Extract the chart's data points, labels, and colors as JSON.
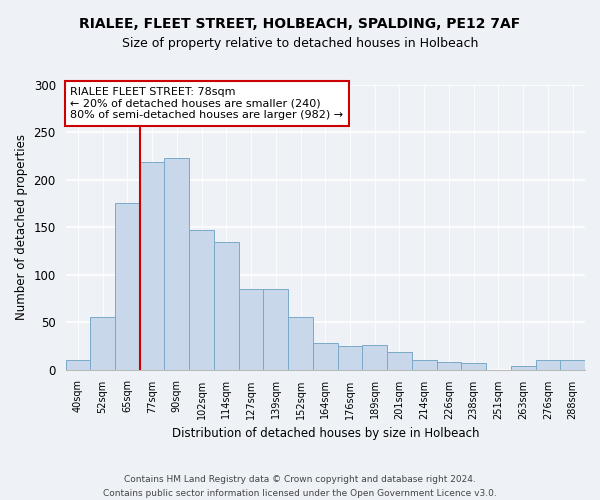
{
  "title_line1": "RIALEE, FLEET STREET, HOLBEACH, SPALDING, PE12 7AF",
  "title_line2": "Size of property relative to detached houses in Holbeach",
  "xlabel": "Distribution of detached houses by size in Holbeach",
  "ylabel": "Number of detached properties",
  "bin_labels": [
    "40sqm",
    "52sqm",
    "65sqm",
    "77sqm",
    "90sqm",
    "102sqm",
    "114sqm",
    "127sqm",
    "139sqm",
    "152sqm",
    "164sqm",
    "176sqm",
    "189sqm",
    "201sqm",
    "214sqm",
    "226sqm",
    "238sqm",
    "251sqm",
    "263sqm",
    "276sqm",
    "288sqm"
  ],
  "bar_heights": [
    10,
    55,
    176,
    219,
    223,
    147,
    135,
    85,
    85,
    55,
    28,
    25,
    26,
    19,
    10,
    8,
    7,
    0,
    4,
    10,
    10
  ],
  "bar_color": "#c8d8ea",
  "bar_edge_color": "#7aaac8",
  "property_bin_index": 3,
  "annotation_title": "RIALEE FLEET STREET: 78sqm",
  "annotation_line2": "← 20% of detached houses are smaller (240)",
  "annotation_line3": "80% of semi-detached houses are larger (982) →",
  "annotation_box_color": "#ffffff",
  "annotation_border_color": "#cc0000",
  "redline_color": "#cc0000",
  "ylim": [
    0,
    300
  ],
  "yticks": [
    0,
    50,
    100,
    150,
    200,
    250,
    300
  ],
  "footer_line1": "Contains HM Land Registry data © Crown copyright and database right 2024.",
  "footer_line2": "Contains public sector information licensed under the Open Government Licence v3.0.",
  "background_color": "#eef2f7"
}
